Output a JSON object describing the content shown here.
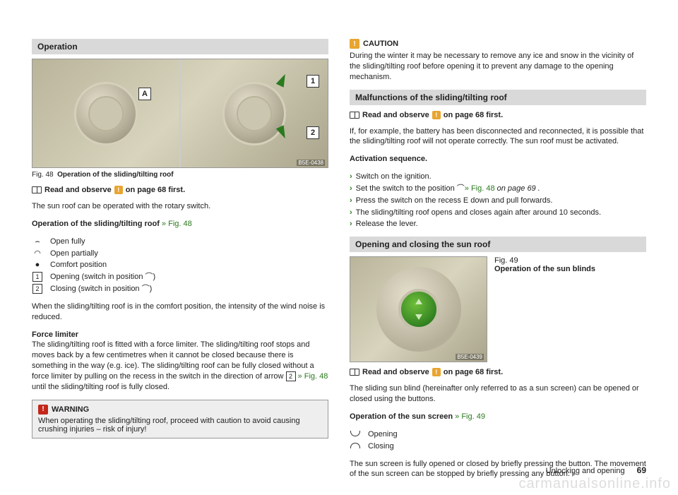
{
  "left": {
    "section1_title": "Operation",
    "fig48_code": "B5E-0438",
    "fig48_caption_prefix": "Fig. 48",
    "fig48_caption_text": "Operation of the sliding/tilting roof",
    "callout_A": "A",
    "callout_1": "1",
    "callout_2": "2",
    "read_observe": "Read and observe",
    "read_observe_tail": "on page 68 first.",
    "para1": "The sun roof can be operated with the rotary switch.",
    "op_heading": "Operation of the sliding/tilting roof",
    "op_ref": " » Fig. 48",
    "items": {
      "open_fully": "Open fully",
      "open_partially": "Open partially",
      "comfort": "Comfort position",
      "opening": "Opening (switch in position ⌒)",
      "closing": "Closing (switch in position ⌒)"
    },
    "box1": "1",
    "box2": "2",
    "para2": "When the sliding/tilting roof is in the comfort position, the intensity of the wind noise is reduced.",
    "force_title": "Force limiter",
    "force_text_a": "The sliding/tilting roof is fitted with a force limiter. The sliding/tilting roof stops and moves back by a few centimetres when it cannot be closed because there is something in the way (e.g. ice). The sliding/tilting roof can be fully closed without a force limiter by pulling on the recess in the switch in the direction of arrow ",
    "force_text_b": " » Fig. 48",
    "force_text_c": " until the sliding/tilting roof is fully closed.",
    "warning_label": "WARNING",
    "warning_text": "When operating the sliding/tilting roof, proceed with caution to avoid causing crushing injuries – risk of injury!"
  },
  "right": {
    "caution_label": "CAUTION",
    "caution_text": "During the winter it may be necessary to remove any ice and snow in the vicinity of the sliding/tilting roof before opening it to prevent any damage to the opening mechanism.",
    "section2_title": "Malfunctions of the sliding/tilting roof",
    "read_observe": "Read and observe",
    "read_observe_tail": "on page 68 first.",
    "para1": "If, for example, the battery has been disconnected and reconnected, it is possible that the sliding/tilting roof will not operate correctly. The sun roof must be activated.",
    "act_title": "Activation sequence.",
    "steps": {
      "s1": "Switch on the ignition.",
      "s2a": "Set the switch to the position ⌒",
      "s2b": "» Fig. 48 ",
      "s2c": "on page 69 .",
      "s3": "Press the switch on the recess E down and pull forwards.",
      "s4": "The sliding/tilting roof opens and closes again after around 10 seconds.",
      "s5": "Release the lever."
    },
    "section3_title": "Opening and closing the sun roof",
    "fig49_prefix": "Fig. 49",
    "fig49_caption": "Operation of the sun blinds",
    "fig49_code": "B5E-0439",
    "read_observe2": "Read and observe",
    "read_observe2_tail": "on page 68 first.",
    "para2": "The sliding sun blind (hereinafter only referred to as a sun screen) can be opened or closed using the buttons.",
    "op_screen_heading": "Operation of the sun screen",
    "op_screen_ref": " » Fig. 49",
    "open_label": "Opening",
    "close_label": "Closing",
    "para3": "The sun screen is fully opened or closed by briefly pressing the button. The movement of the sun screen can be stopped by briefly pressing any button."
  },
  "footer": {
    "section": "Unlocking and opening",
    "page": "69"
  },
  "watermark": "carmanualsonline.info"
}
